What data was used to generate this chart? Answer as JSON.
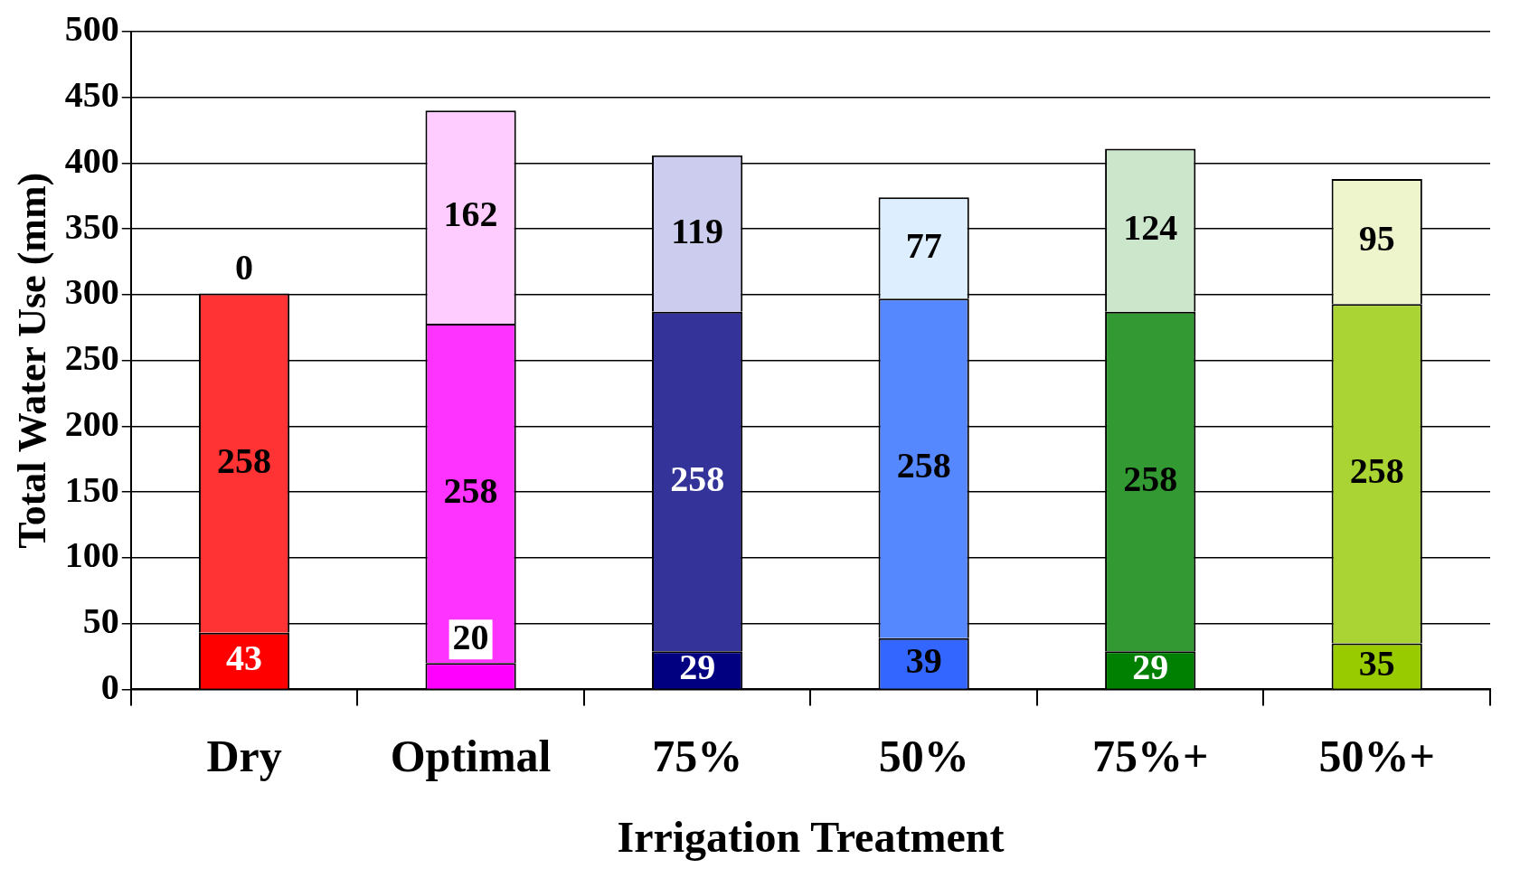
{
  "chart_data": {
    "type": "bar",
    "xlabel": "Irrigation Treatment",
    "ylabel": "Total Water Use (mm)",
    "categories": [
      "Dry",
      "Optimal",
      "75%",
      "50%",
      "75%+",
      "50%+"
    ],
    "stacked": true,
    "data_labels": true,
    "grid": "y",
    "ylim": [
      0,
      500
    ],
    "yticks": [
      0,
      50,
      100,
      150,
      200,
      250,
      300,
      350,
      400,
      450,
      500
    ],
    "series": [
      {
        "colors": [
          "#ff0000",
          "#ff00ff",
          "#000080",
          "#3366ff",
          "#008000",
          "#99cc00"
        ],
        "values": [
          43,
          20,
          29,
          39,
          29,
          35
        ]
      },
      {
        "colors": [
          "#ff3333",
          "#ff33ff",
          "#333399",
          "#5588ff",
          "#339933",
          "#aad433"
        ],
        "values": [
          258,
          258,
          258,
          258,
          258,
          258
        ]
      },
      {
        "colors": [
          "#ffcccc",
          "#ffccff",
          "#ccccee",
          "#ddeeff",
          "#cce6cc",
          "#eef5cc"
        ],
        "values": [
          0,
          162,
          119,
          77,
          124,
          95
        ]
      }
    ]
  }
}
